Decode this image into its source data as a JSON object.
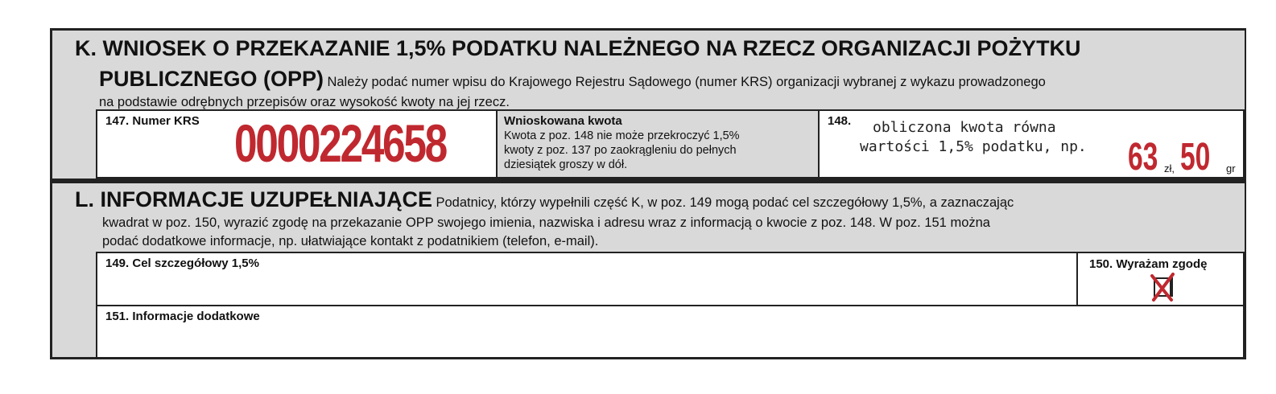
{
  "section_k": {
    "letter_title": "K. WNIOSEK O PRZEKAZANIE 1,5% PODATKU NALEŻNEGO NA RZECZ ORGANIZACJI POŻYTKU",
    "title_line2": "PUBLICZNEGO (OPP)",
    "description_1": "Należy podać numer wpisu do Krajowego Rejestru Sądowego (numer KRS) organizacji wybranej z wykazu prowadzonego",
    "description_2": "na podstawie odrębnych przepisów oraz wysokość kwoty na jej rzecz.",
    "field_147_label": "147. Numer KRS",
    "field_147_value": "0000224658",
    "requested_label": "Wnioskowana kwota",
    "requested_note": "Kwota z poz. 148 nie może przekroczyć 1,5% kwoty z poz. 137 po zaokrągleniu do pełnych dziesiątek groszy w dół.",
    "field_148_label": "148.",
    "field_148_hint_1": "obliczona kwota równa",
    "field_148_hint_2": "wartości 1,5% podatku, np.",
    "amount_zl": "63",
    "zl_unit": "zł,",
    "amount_gr": "50",
    "gr_unit": "gr"
  },
  "section_l": {
    "title": "L. INFORMACJE UZUPEŁNIAJĄCE",
    "description_1": "Podatnicy, którzy wypełnili część K, w poz. 149 mogą podać cel szczegółowy 1,5%, a zaznaczając",
    "description_2": "kwadrat w poz. 150, wyrazić zgodę na przekazanie OPP swojego imienia, nazwiska i adresu wraz z informacją o kwocie z poz. 148. W poz. 151 można",
    "description_3": "podać dodatkowe informacje, np. ułatwiające kontakt z podatnikiem (telefon, e-mail).",
    "field_149_label": "149. Cel szczegółowy 1,5%",
    "field_149_value": "",
    "field_150_label": "150. Wyrażam zgodę",
    "field_150_checked": true,
    "field_151_label": "151. Informacje dodatkowe",
    "field_151_value": ""
  },
  "colors": {
    "accent_red": "#c0282f",
    "section_gray": "#d9d9d9"
  }
}
